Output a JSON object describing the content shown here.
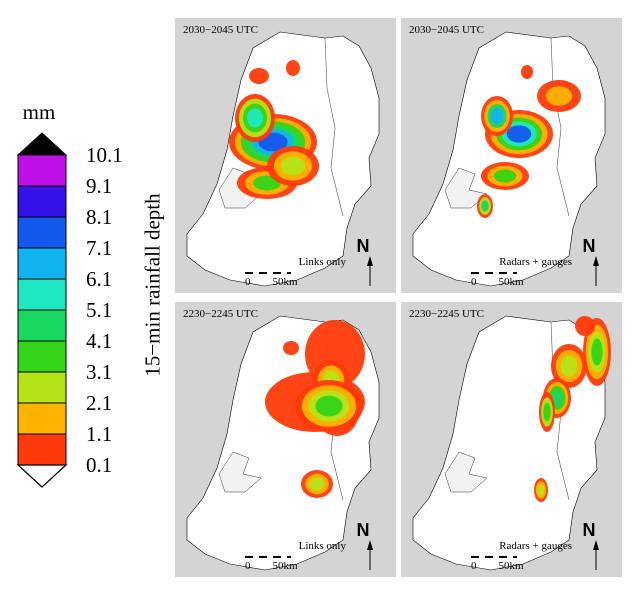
{
  "legend": {
    "unit": "mm",
    "title": "15−min rainfall depth",
    "ticks": [
      "10.1",
      "9.1",
      "8.1",
      "7.1",
      "6.1",
      "5.1",
      "4.1",
      "3.1",
      "2.1",
      "1.1",
      "0.1"
    ],
    "colors": [
      "#c010e8",
      "#3412e8",
      "#1458ee",
      "#12b4f0",
      "#1ee8c0",
      "#18d860",
      "#34d418",
      "#b4e418",
      "#ffb400",
      "#ff3a0a"
    ],
    "over_color": "#000000",
    "under_color": "#ffffff"
  },
  "panels": [
    {
      "id": "tl",
      "time": "2030−2045 UTC",
      "source": "Links only"
    },
    {
      "id": "tr",
      "time": "2030−2045 UTC",
      "source": "Radars + gauges"
    },
    {
      "id": "bl",
      "time": "2230−2245 UTC",
      "source": "Links only"
    },
    {
      "id": "br",
      "time": "2230−2245 UTC",
      "source": "Radars + gauges"
    }
  ],
  "north_label": "N",
  "scale_bar": {
    "start": "0",
    "end": "50",
    "unit": "km"
  }
}
